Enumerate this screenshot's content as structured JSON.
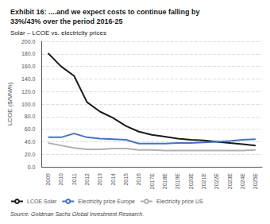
{
  "chart_data": {
    "type": "line",
    "title": "Exhibit 16: ....and we expect costs to continue falling by\n33%/43% over the period 2016-25",
    "subtitle": "Solar – LCOE vs. electricity prices",
    "source": "Source: Goldman Sachs Global Investment Research.",
    "ylabel": "LCOE ($/MWh)",
    "categories": [
      "2009",
      "2010",
      "2011",
      "2012",
      "2013",
      "2014",
      "2015",
      "2016",
      "2017E",
      "2018E",
      "2019E",
      "2020E",
      "2021E",
      "2022E",
      "2023E",
      "2024E",
      "2025E"
    ],
    "series": [
      {
        "name": "LCOE Solar",
        "color": "#1a1a1a",
        "values": [
          181,
          160,
          145,
          103,
          88,
          78,
          65,
          56,
          51,
          48,
          45,
          43,
          42,
          40,
          38,
          36,
          34
        ]
      },
      {
        "name": "Electricity price Europe",
        "color": "#4472c4",
        "values": [
          47,
          47,
          53,
          47,
          45,
          44,
          43,
          37,
          37,
          37,
          38,
          38,
          39,
          40,
          41,
          43,
          44
        ]
      },
      {
        "name": "Electricity price US",
        "color": "#b0b0b0",
        "values": [
          38,
          34,
          30,
          28,
          28,
          29,
          29,
          27,
          27,
          26,
          26,
          26,
          26,
          26,
          26,
          26,
          27
        ]
      }
    ],
    "ylim": [
      0,
      200
    ],
    "yticks": [
      {
        "value": 0,
        "label": "0.0"
      },
      {
        "value": 20,
        "label": "20.0"
      },
      {
        "value": 40,
        "label": "40.0"
      },
      {
        "value": 60,
        "label": "60.0"
      },
      {
        "value": 80,
        "label": "80.0"
      },
      {
        "value": 100,
        "label": "100.0"
      },
      {
        "value": 120,
        "label": "120.0"
      },
      {
        "value": 140,
        "label": "140.0"
      },
      {
        "value": 160,
        "label": "160.0"
      },
      {
        "value": 180,
        "label": "180.0"
      },
      {
        "value": 200,
        "label": "200.0"
      }
    ],
    "grid": true,
    "legend": "lower left"
  }
}
